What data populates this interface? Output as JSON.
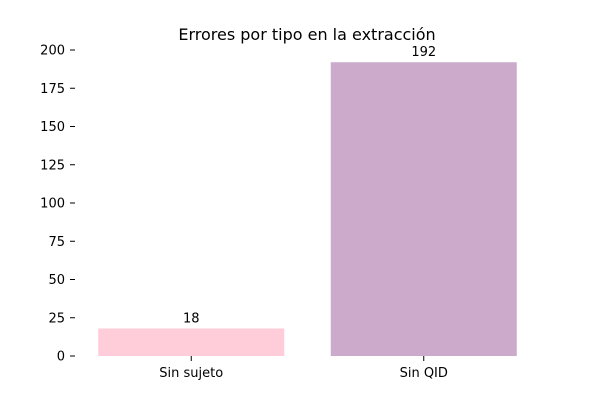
{
  "chart_data": {
    "type": "bar",
    "title": "Errores por tipo en la extracción",
    "xlabel": "",
    "ylabel": "",
    "categories": [
      "Sin sujeto",
      "Sin QID"
    ],
    "values": [
      18,
      192
    ],
    "colors": [
      "#ffccd9",
      "#ccaacc"
    ],
    "ylim": [
      0,
      200
    ],
    "yticks": [
      0,
      25,
      50,
      75,
      100,
      125,
      150,
      175,
      200
    ],
    "grid": false,
    "legend": "none",
    "data_labels": [
      "18",
      "192"
    ]
  }
}
